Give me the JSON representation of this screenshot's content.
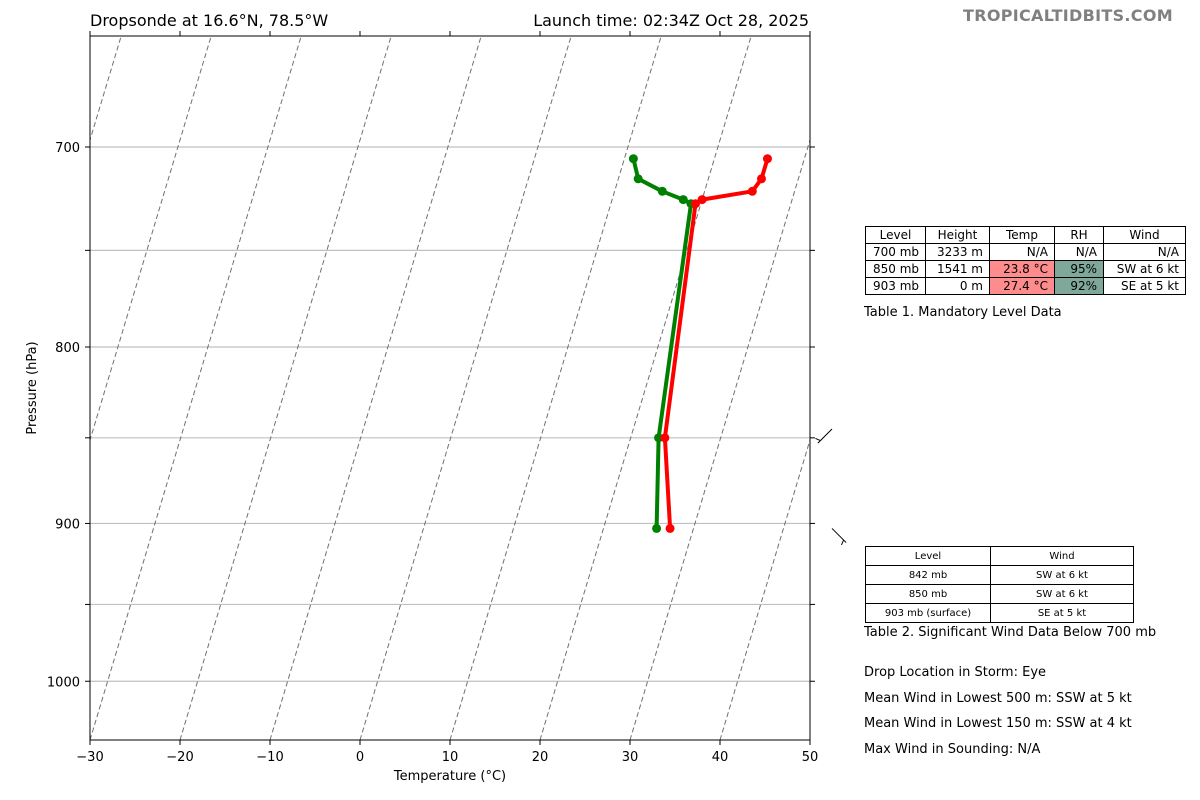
{
  "header": {
    "title_left": "Dropsonde at 16.6°N, 78.5°W",
    "title_right": "Launch time: 02:34Z Oct 28, 2025",
    "brand": "TROPICALTIDBITS.COM"
  },
  "chart_data": {
    "type": "line",
    "subtype": "skew-t",
    "xlabel": "Temperature (°C)",
    "ylabel": "Pressure (hPa)",
    "xlim": [
      -30,
      50
    ],
    "ylim": [
      1040,
      650
    ],
    "y_scale": "log",
    "x_ticks": [
      -30,
      -20,
      -10,
      0,
      10,
      20,
      30,
      40,
      50
    ],
    "x_tick_labels": [
      "−30",
      "−20",
      "−10",
      "0",
      "10",
      "20",
      "30",
      "40",
      "50"
    ],
    "y_ticks": [
      700,
      800,
      900,
      1000
    ],
    "y_tick_labels": [
      "700",
      "800",
      "900",
      "1000"
    ],
    "y_gridlines": [
      700,
      750,
      800,
      850,
      900,
      950,
      1000
    ],
    "grid": true,
    "series": [
      {
        "role": "temperature",
        "color": "#ff0000",
        "points": [
          {
            "p": 705.5,
            "t": 25.9
          },
          {
            "p": 715,
            "t": 25.9
          },
          {
            "p": 721,
            "t": 25.3
          },
          {
            "p": 725,
            "t": 20.0
          },
          {
            "p": 727,
            "t": 19.4
          },
          {
            "p": 850,
            "t": 23.8
          },
          {
            "p": 903,
            "t": 27.4
          }
        ]
      },
      {
        "role": "dewpoint",
        "color": "#008000",
        "points": [
          {
            "p": 705.5,
            "t": 11.0
          },
          {
            "p": 715,
            "t": 12.2
          },
          {
            "p": 721,
            "t": 15.3
          },
          {
            "p": 725,
            "t": 17.9
          },
          {
            "p": 727,
            "t": 18.9
          },
          {
            "p": 850,
            "t": 23.1
          },
          {
            "p": 903,
            "t": 25.9
          }
        ]
      }
    ],
    "wind_barbs": [
      {
        "p": 845,
        "dir_deg": 225,
        "speed_kt": 6
      },
      {
        "p": 903,
        "dir_deg": 135,
        "speed_kt": 5
      }
    ]
  },
  "table1": {
    "headers": [
      "Level",
      "Height",
      "Temp",
      "RH",
      "Wind"
    ],
    "rows": [
      [
        "700 mb",
        "3233 m",
        "N/A",
        "N/A",
        "N/A"
      ],
      [
        "850 mb",
        "1541 m",
        "23.8 °C",
        "95%",
        "SW at 6 kt"
      ],
      [
        "903 mb",
        "0 m",
        "27.4 °C",
        "92%",
        "SE at 5 kt"
      ]
    ],
    "caption": "Table 1. Mandatory Level Data",
    "temp_color": "#ff8c8c",
    "rh_color": "#7fa89a"
  },
  "table2": {
    "headers": [
      "Level",
      "Wind"
    ],
    "rows": [
      [
        "842 mb",
        "SW at 6 kt"
      ],
      [
        "850 mb",
        "SW at 6 kt"
      ],
      [
        "903 mb (surface)",
        "SE at 5 kt"
      ]
    ],
    "caption": "Table 2. Significant Wind Data Below 700 mb"
  },
  "info": {
    "drop_location": "Drop Location in Storm: Eye",
    "mean_wind_500": "Mean Wind in Lowest 500 m:  SSW at 5 kt",
    "mean_wind_150": "Mean Wind in Lowest 150 m:  SSW at 4 kt",
    "max_wind": "Max Wind in Sounding:  N/A"
  }
}
